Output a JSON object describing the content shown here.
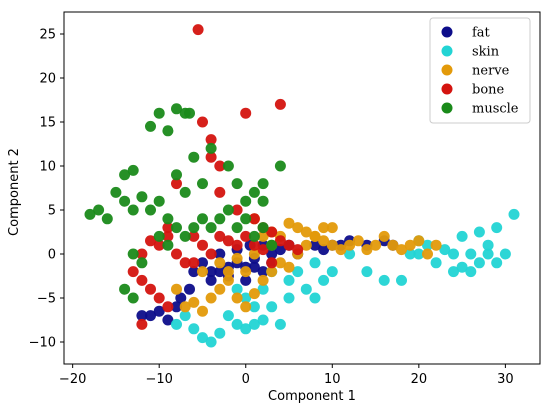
{
  "chart_data": {
    "type": "scatter",
    "title": "",
    "xlabel": "Component 1",
    "ylabel": "Component 2",
    "xlim": [
      -21,
      34
    ],
    "ylim": [
      -12.5,
      27.5
    ],
    "xticks": [
      -20,
      -10,
      0,
      10,
      20,
      30
    ],
    "yticks": [
      -10,
      -5,
      0,
      5,
      10,
      15,
      20,
      25
    ],
    "legend_position": "top-right",
    "grid": false,
    "series": [
      {
        "name": "fat",
        "color": "#0d0d8a",
        "points": [
          [
            -11,
            -7
          ],
          [
            -10,
            -6.5
          ],
          [
            -9,
            -7.5
          ],
          [
            -8,
            -6
          ],
          [
            -7.5,
            -5
          ],
          [
            -6.5,
            -4
          ],
          [
            -4,
            -3
          ],
          [
            -3,
            -2
          ],
          [
            -2,
            -1.5
          ],
          [
            -1,
            -1
          ],
          [
            0,
            -1.5
          ],
          [
            1,
            -0.5
          ],
          [
            2,
            -2
          ],
          [
            3,
            -1
          ],
          [
            -5,
            -1
          ],
          [
            -3,
            0
          ],
          [
            -1,
            0.5
          ],
          [
            0.5,
            1
          ],
          [
            2,
            1
          ],
          [
            4,
            0.5
          ],
          [
            6,
            0
          ],
          [
            8,
            1
          ],
          [
            10,
            1
          ],
          [
            12,
            1.5
          ],
          [
            14,
            1
          ],
          [
            16,
            1.5
          ],
          [
            17,
            1
          ],
          [
            -12,
            -7
          ],
          [
            -2,
            -2.5
          ],
          [
            0,
            -3
          ],
          [
            -4,
            -2
          ],
          [
            1,
            -1.5
          ],
          [
            -6,
            -2
          ],
          [
            3,
            0
          ],
          [
            5,
            1
          ],
          [
            9,
            0.5
          ],
          [
            11,
            1
          ]
        ]
      },
      {
        "name": "skin",
        "color": "#22d4d4",
        "points": [
          [
            -6,
            -8.5
          ],
          [
            -5,
            -9.5
          ],
          [
            -4,
            -10
          ],
          [
            -3,
            -9
          ],
          [
            -1,
            -8
          ],
          [
            0,
            -8.5
          ],
          [
            1,
            -8
          ],
          [
            2,
            -7.5
          ],
          [
            4,
            -8
          ],
          [
            -7,
            -7
          ],
          [
            -2,
            -7
          ],
          [
            3,
            -6
          ],
          [
            5,
            -5
          ],
          [
            7,
            -4
          ],
          [
            8,
            -5
          ],
          [
            9,
            -3
          ],
          [
            6,
            -2
          ],
          [
            8,
            -1
          ],
          [
            10,
            -2
          ],
          [
            12,
            0
          ],
          [
            14,
            -2
          ],
          [
            16,
            -3
          ],
          [
            18,
            -3
          ],
          [
            20,
            0
          ],
          [
            22,
            -1
          ],
          [
            24,
            -2
          ],
          [
            25,
            -1.5
          ],
          [
            26,
            -2
          ],
          [
            27,
            -1
          ],
          [
            28,
            0
          ],
          [
            29,
            -1
          ],
          [
            30,
            0
          ],
          [
            31,
            4.5
          ],
          [
            21,
            1
          ],
          [
            23,
            0.5
          ],
          [
            25,
            2
          ],
          [
            27,
            2.5
          ],
          [
            29,
            3
          ],
          [
            28,
            1
          ],
          [
            26,
            0
          ],
          [
            24,
            0
          ],
          [
            20,
            1.5
          ],
          [
            19,
            0
          ],
          [
            5,
            -3
          ],
          [
            3,
            -2
          ],
          [
            2,
            -4
          ],
          [
            0,
            -5
          ],
          [
            -1,
            -4
          ],
          [
            1,
            -6
          ],
          [
            -8,
            -8
          ]
        ]
      },
      {
        "name": "nerve",
        "color": "#e39a0a",
        "points": [
          [
            -8,
            -4
          ],
          [
            -7,
            -6
          ],
          [
            -6,
            -5.5
          ],
          [
            -5,
            -6.5
          ],
          [
            -4,
            -5
          ],
          [
            -3,
            -4
          ],
          [
            -2,
            -3
          ],
          [
            -1,
            -5
          ],
          [
            0,
            -6
          ],
          [
            1,
            -4.5
          ],
          [
            2,
            -3
          ],
          [
            3,
            -2
          ],
          [
            4,
            -1
          ],
          [
            5,
            -1.5
          ],
          [
            6,
            0
          ],
          [
            7,
            1
          ],
          [
            8,
            2
          ],
          [
            9,
            1.5
          ],
          [
            10,
            1
          ],
          [
            11,
            0.5
          ],
          [
            12,
            1
          ],
          [
            13,
            1.5
          ],
          [
            14,
            0.5
          ],
          [
            15,
            1
          ],
          [
            16,
            2
          ],
          [
            17,
            1
          ],
          [
            18,
            0.5
          ],
          [
            19,
            1
          ],
          [
            20,
            1.5
          ],
          [
            21,
            0
          ],
          [
            22,
            1
          ],
          [
            -5,
            -2
          ],
          [
            -3,
            -1
          ],
          [
            -1,
            -0.5
          ],
          [
            1,
            0
          ],
          [
            2,
            2
          ],
          [
            3,
            1
          ],
          [
            4,
            2
          ],
          [
            5,
            3.5
          ],
          [
            6,
            3
          ],
          [
            7,
            2.5
          ],
          [
            8,
            2
          ],
          [
            9,
            3
          ],
          [
            10,
            3
          ],
          [
            -2,
            -2
          ],
          [
            0,
            -2
          ],
          [
            1,
            4
          ],
          [
            3,
            2.5
          ]
        ]
      },
      {
        "name": "bone",
        "color": "#d4140f",
        "points": [
          [
            -5.5,
            25.5
          ],
          [
            4,
            17
          ],
          [
            0,
            16
          ],
          [
            -5,
            15
          ],
          [
            -4,
            13
          ],
          [
            -4,
            11
          ],
          [
            -3,
            10
          ],
          [
            -8,
            8
          ],
          [
            -3,
            7
          ],
          [
            -1,
            5
          ],
          [
            1,
            4
          ],
          [
            2,
            3
          ],
          [
            3,
            2.5
          ],
          [
            4,
            1.5
          ],
          [
            5,
            1
          ],
          [
            6,
            0.5
          ],
          [
            -9,
            3
          ],
          [
            -10,
            1
          ],
          [
            -12,
            0
          ],
          [
            -13,
            -2
          ],
          [
            -12,
            -3
          ],
          [
            -11,
            -4
          ],
          [
            -10,
            -5
          ],
          [
            -9,
            -6
          ],
          [
            -12,
            -8
          ],
          [
            -6,
            2
          ],
          [
            -5,
            1
          ],
          [
            -4,
            0
          ],
          [
            -3,
            2
          ],
          [
            -2,
            1.5
          ],
          [
            -1,
            1
          ],
          [
            0,
            2
          ],
          [
            1,
            1
          ],
          [
            2,
            0.5
          ],
          [
            3,
            -1
          ],
          [
            -7,
            -1
          ],
          [
            -8,
            0
          ],
          [
            -6,
            -1
          ],
          [
            -11,
            1.5
          ],
          [
            -9,
            2
          ]
        ]
      },
      {
        "name": "muscle",
        "color": "#1a8a1a",
        "points": [
          [
            -7,
            16
          ],
          [
            -8,
            16.5
          ],
          [
            -6.5,
            16
          ],
          [
            -9,
            14
          ],
          [
            -11,
            14.5
          ],
          [
            -10,
            16
          ],
          [
            -6,
            11
          ],
          [
            -4,
            12
          ],
          [
            -2,
            10
          ],
          [
            -1,
            8
          ],
          [
            1,
            7
          ],
          [
            2,
            8
          ],
          [
            4,
            10
          ],
          [
            -14,
            9
          ],
          [
            -13,
            9.5
          ],
          [
            -15,
            7
          ],
          [
            -14,
            6
          ],
          [
            -13,
            5
          ],
          [
            -12,
            6.5
          ],
          [
            -17,
            5
          ],
          [
            -18,
            4.5
          ],
          [
            -16,
            4
          ],
          [
            -11,
            5
          ],
          [
            -10,
            6
          ],
          [
            -9,
            4
          ],
          [
            -8,
            3
          ],
          [
            -7,
            2
          ],
          [
            -6,
            3
          ],
          [
            -5,
            4
          ],
          [
            -4,
            3
          ],
          [
            -3,
            4
          ],
          [
            -2,
            5
          ],
          [
            -1,
            3
          ],
          [
            0,
            4
          ],
          [
            1,
            2
          ],
          [
            2,
            3
          ],
          [
            3,
            1
          ],
          [
            -13,
            0
          ],
          [
            -12,
            -1
          ],
          [
            -14,
            -4
          ],
          [
            -13,
            -5
          ],
          [
            -7,
            7
          ],
          [
            -5,
            8
          ],
          [
            0,
            6
          ],
          [
            2,
            6
          ],
          [
            -8,
            9
          ],
          [
            -9,
            1
          ],
          [
            -10,
            2
          ]
        ]
      }
    ]
  }
}
